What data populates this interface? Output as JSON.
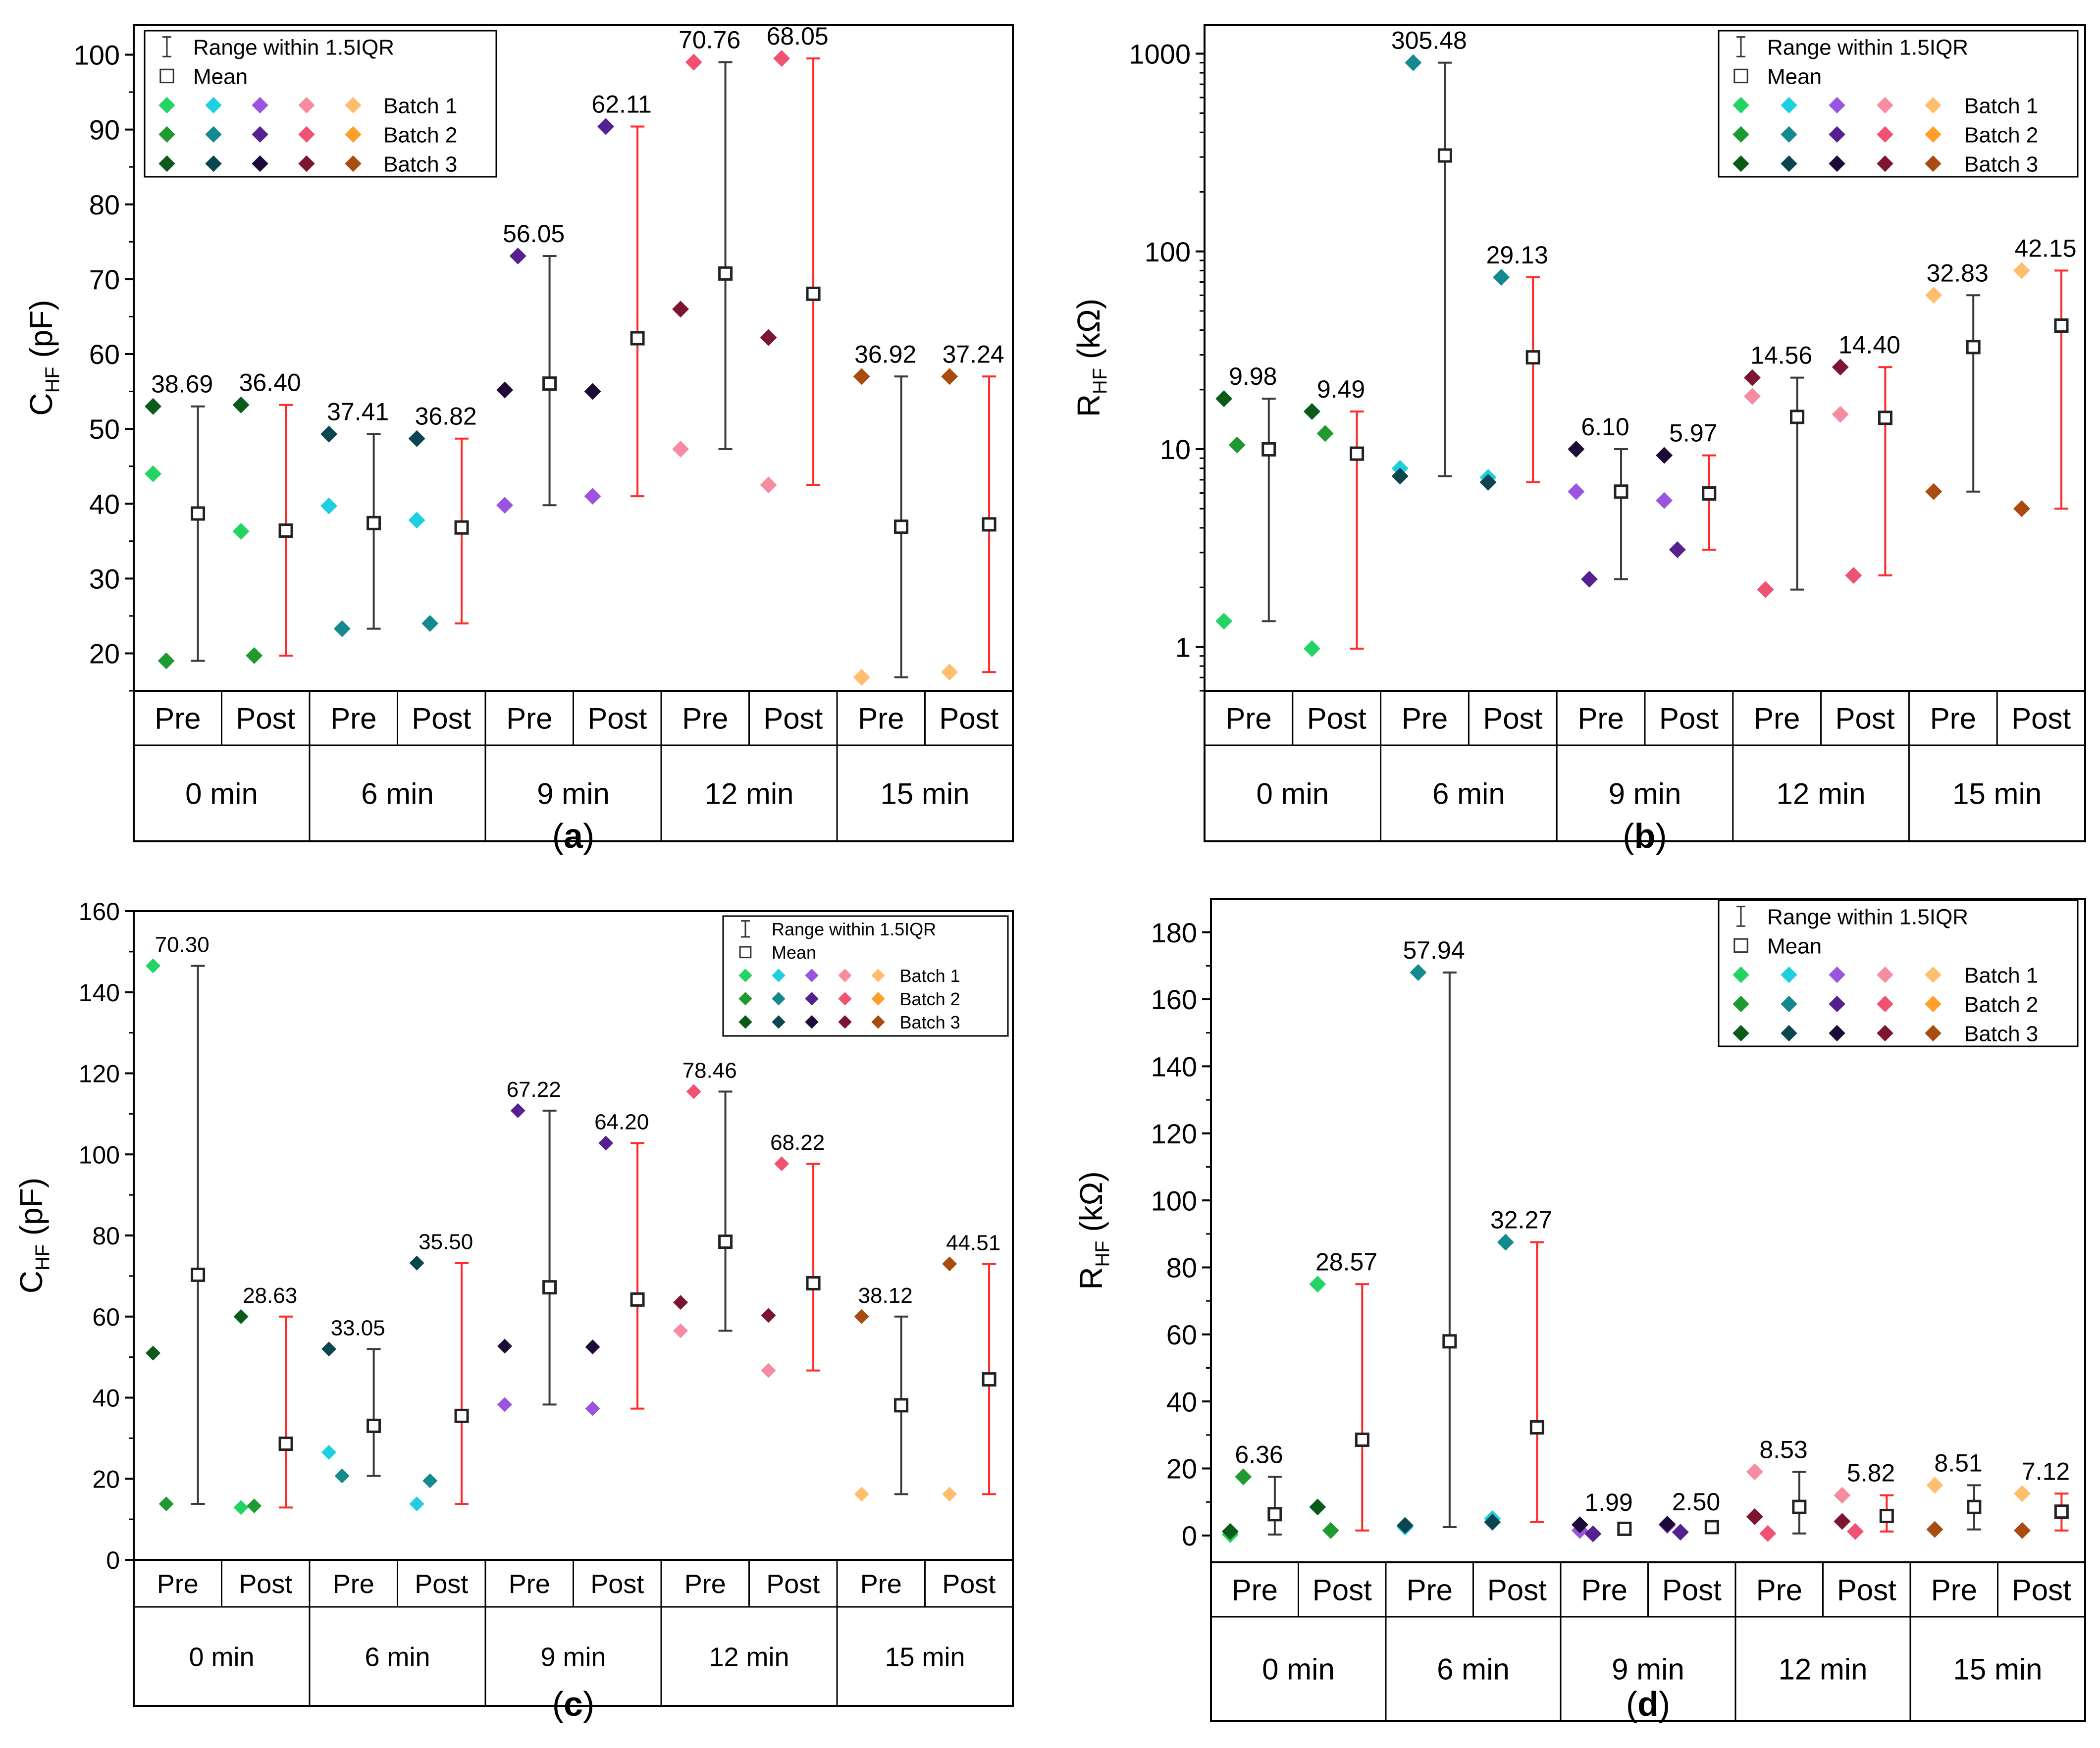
{
  "colors": {
    "batch": [
      [
        "#22d462",
        "#1fcfe0",
        "#9a55e0",
        "#f78ba0",
        "#ffbe6e"
      ],
      [
        "#1f9a30",
        "#148a8e",
        "#552090",
        "#f05272",
        "#ff9e28"
      ],
      [
        "#0a5a1a",
        "#0a4550",
        "#1e0a36",
        "#7e1530",
        "#a84c10"
      ]
    ],
    "pre_range": "#3a3a3a",
    "post_range": "#ff2a2a",
    "mean": "#222222"
  },
  "legend": {
    "range_label": "Range within 1.5IQR",
    "mean_label": "Mean",
    "batch_labels": [
      "Batch 1",
      "Batch 2",
      "Batch 3"
    ]
  },
  "groups": [
    {
      "time": "0 min",
      "pre": "Pre",
      "post": "Post"
    },
    {
      "time": "6 min",
      "pre": "Pre",
      "post": "Post"
    },
    {
      "time": "9 min",
      "pre": "Pre",
      "post": "Post"
    },
    {
      "time": "12 min",
      "pre": "Pre",
      "post": "Post"
    },
    {
      "time": "15 min",
      "pre": "Pre",
      "post": "Post"
    }
  ],
  "chart_data": [
    {
      "panel": "(a)",
      "type": "scatter",
      "ylabel_main": "C",
      "ylabel_sub": "HF",
      "ylabel_unit": "(pF)",
      "scale": "linear",
      "ylim": [
        15,
        104
      ],
      "yticks": [
        20,
        30,
        40,
        50,
        60,
        70,
        80,
        90,
        100
      ],
      "legend_position": "top-left",
      "series": [
        {
          "pre": {
            "points": [
              44,
              19,
              53
            ],
            "range": [
              19,
              53
            ],
            "mean": 38.69,
            "label": "38.69"
          },
          "post": {
            "points": [
              36.3,
              19.7,
              53.2
            ],
            "range": [
              19.7,
              53.2
            ],
            "mean": 36.4,
            "label": "36.40"
          }
        },
        {
          "pre": {
            "points": [
              39.7,
              23.3,
              49.3
            ],
            "range": [
              23.3,
              49.3
            ],
            "mean": 37.41,
            "label": "37.41"
          },
          "post": {
            "points": [
              37.8,
              24,
              48.7
            ],
            "range": [
              24,
              48.7
            ],
            "mean": 36.82,
            "label": "36.82"
          }
        },
        {
          "pre": {
            "points": [
              39.8,
              73.1,
              55.2
            ],
            "range": [
              39.8,
              73.1
            ],
            "mean": 56.05,
            "label": "56.05"
          },
          "post": {
            "points": [
              41,
              90.4,
              55
            ],
            "range": [
              41,
              90.4
            ],
            "mean": 62.11,
            "label": "62.11"
          }
        },
        {
          "pre": {
            "points": [
              47.3,
              99,
              66
            ],
            "range": [
              47.3,
              99
            ],
            "mean": 70.76,
            "label": "70.76"
          },
          "post": {
            "points": [
              42.5,
              99.5,
              62.2
            ],
            "range": [
              42.5,
              99.5
            ],
            "mean": 68.05,
            "label": "68.05"
          }
        },
        {
          "pre": {
            "points": [
              16.8,
              null,
              57
            ],
            "range": [
              16.8,
              57
            ],
            "mean": 36.92,
            "label": "36.92"
          },
          "post": {
            "points": [
              17.5,
              null,
              57
            ],
            "range": [
              17.5,
              57
            ],
            "mean": 37.24,
            "label": "37.24"
          }
        }
      ]
    },
    {
      "panel": "(b)",
      "type": "scatter",
      "ylabel_main": "R",
      "ylabel_sub": "HF",
      "ylabel_unit": "(kΩ)",
      "scale": "log",
      "ylim": [
        0.6,
        1400
      ],
      "yticks": [
        1,
        10,
        100,
        1000
      ],
      "legend_position": "top-right",
      "series": [
        {
          "pre": {
            "points": [
              1.35,
              10.5,
              18
            ],
            "range": [
              1.35,
              18
            ],
            "mean": 9.98,
            "label": "9.98"
          },
          "post": {
            "points": [
              0.98,
              12,
              15.5
            ],
            "range": [
              0.98,
              15.5
            ],
            "mean": 9.49,
            "label": "9.49"
          }
        },
        {
          "pre": {
            "points": [
              8,
              900,
              7.3
            ],
            "range": [
              7.3,
              900
            ],
            "mean": 305.48,
            "label": "305.48"
          },
          "post": {
            "points": [
              7.2,
              74,
              6.8
            ],
            "range": [
              6.8,
              74
            ],
            "mean": 29.13,
            "label": "29.13"
          }
        },
        {
          "pre": {
            "points": [
              6.1,
              2.2,
              10
            ],
            "range": [
              2.2,
              10
            ],
            "mean": 6.1,
            "label": "6.10"
          },
          "post": {
            "points": [
              5.5,
              3.1,
              9.3
            ],
            "range": [
              3.1,
              9.3
            ],
            "mean": 5.97,
            "label": "5.97"
          }
        },
        {
          "pre": {
            "points": [
              18.5,
              1.95,
              23
            ],
            "range": [
              1.95,
              23
            ],
            "mean": 14.56,
            "label": "14.56"
          },
          "post": {
            "points": [
              15,
              2.3,
              26
            ],
            "range": [
              2.3,
              26
            ],
            "mean": 14.4,
            "label": "14.40"
          }
        },
        {
          "pre": {
            "points": [
              60,
              null,
              6.1
            ],
            "range": [
              6.1,
              60
            ],
            "mean": 32.83,
            "label": "32.83"
          },
          "post": {
            "points": [
              80,
              null,
              5
            ],
            "range": [
              5,
              80
            ],
            "mean": 42.15,
            "label": "42.15"
          }
        }
      ]
    },
    {
      "panel": "(c)",
      "type": "scatter",
      "ylabel_main": "C",
      "ylabel_sub": "HF",
      "ylabel_unit": "(pF)",
      "scale": "linear",
      "ylim": [
        0,
        160
      ],
      "yticks": [
        0,
        20,
        40,
        60,
        80,
        100,
        120,
        140,
        160
      ],
      "legend_position": "top-right",
      "series": [
        {
          "pre": {
            "points": [
              146.5,
              13.8,
              51
            ],
            "range": [
              13.8,
              146.5
            ],
            "mean": 70.3,
            "label": "70.30"
          },
          "post": {
            "points": [
              12.9,
              13.3,
              60
            ],
            "range": [
              12.9,
              60
            ],
            "mean": 28.63,
            "label": "28.63"
          }
        },
        {
          "pre": {
            "points": [
              26.5,
              20.7,
              52
            ],
            "range": [
              20.7,
              52
            ],
            "mean": 33.05,
            "label": "33.05"
          },
          "post": {
            "points": [
              13.8,
              19.5,
              73.2
            ],
            "range": [
              13.8,
              73.2
            ],
            "mean": 35.5,
            "label": "35.50"
          }
        },
        {
          "pre": {
            "points": [
              38.3,
              110.8,
              52.7
            ],
            "range": [
              38.3,
              110.8
            ],
            "mean": 67.22,
            "label": "67.22"
          },
          "post": {
            "points": [
              37.3,
              102.8,
              52.5
            ],
            "range": [
              37.3,
              102.8
            ],
            "mean": 64.2,
            "label": "64.20"
          }
        },
        {
          "pre": {
            "points": [
              56.5,
              115.5,
              63.5
            ],
            "range": [
              56.5,
              115.5
            ],
            "mean": 78.46,
            "label": "78.46"
          },
          "post": {
            "points": [
              46.7,
              97.7,
              60.3
            ],
            "range": [
              46.7,
              97.7
            ],
            "mean": 68.22,
            "label": "68.22"
          }
        },
        {
          "pre": {
            "points": [
              16.2,
              null,
              60
            ],
            "range": [
              16.2,
              60
            ],
            "mean": 38.12,
            "label": "38.12"
          },
          "post": {
            "points": [
              16.2,
              null,
              73
            ],
            "range": [
              16.2,
              73
            ],
            "mean": 44.51,
            "label": "44.51"
          }
        }
      ]
    },
    {
      "panel": "(d)",
      "type": "scatter",
      "ylabel_main": "R",
      "ylabel_sub": "HF",
      "ylabel_unit": "(kΩ)",
      "scale": "linear",
      "ylim": [
        -8,
        190
      ],
      "yticks": [
        0,
        20,
        40,
        60,
        80,
        100,
        120,
        140,
        160,
        180
      ],
      "legend_position": "top-right",
      "series": [
        {
          "pre": {
            "points": [
              0.3,
              17.5,
              1.2
            ],
            "range": [
              0.3,
              17.5
            ],
            "mean": 6.36,
            "label": "6.36"
          },
          "post": {
            "points": [
              75,
              1.5,
              8.5
            ],
            "range": [
              1.5,
              75
            ],
            "mean": 28.57,
            "label": "28.57"
          }
        },
        {
          "pre": {
            "points": [
              2.5,
              168,
              3
            ],
            "range": [
              2.5,
              168
            ],
            "mean": 57.94,
            "label": "57.94"
          },
          "post": {
            "points": [
              5,
              87.5,
              4
            ],
            "range": [
              4,
              87.5
            ],
            "mean": 32.27,
            "label": "32.27"
          }
        },
        {
          "pre": {
            "points": [
              1.5,
              0.5,
              3.2
            ],
            "range": [
              0.5,
              3.2
            ],
            "mean": 1.99,
            "label": "1.99"
          },
          "post": {
            "points": [
              3,
              1,
              3.4
            ],
            "range": [
              1,
              3.4
            ],
            "mean": 2.5,
            "label": "2.50"
          }
        },
        {
          "pre": {
            "points": [
              19,
              0.6,
              5.6
            ],
            "range": [
              0.6,
              19
            ],
            "mean": 8.53,
            "label": "8.53"
          },
          "post": {
            "points": [
              12,
              1.2,
              4.2
            ],
            "range": [
              1.2,
              12
            ],
            "mean": 5.82,
            "label": "5.82"
          }
        },
        {
          "pre": {
            "points": [
              15,
              null,
              1.8
            ],
            "range": [
              1.8,
              15
            ],
            "mean": 8.51,
            "label": "8.51"
          },
          "post": {
            "points": [
              12.5,
              null,
              1.5
            ],
            "range": [
              1.5,
              12.5
            ],
            "mean": 7.12,
            "label": "7.12"
          }
        }
      ]
    }
  ]
}
